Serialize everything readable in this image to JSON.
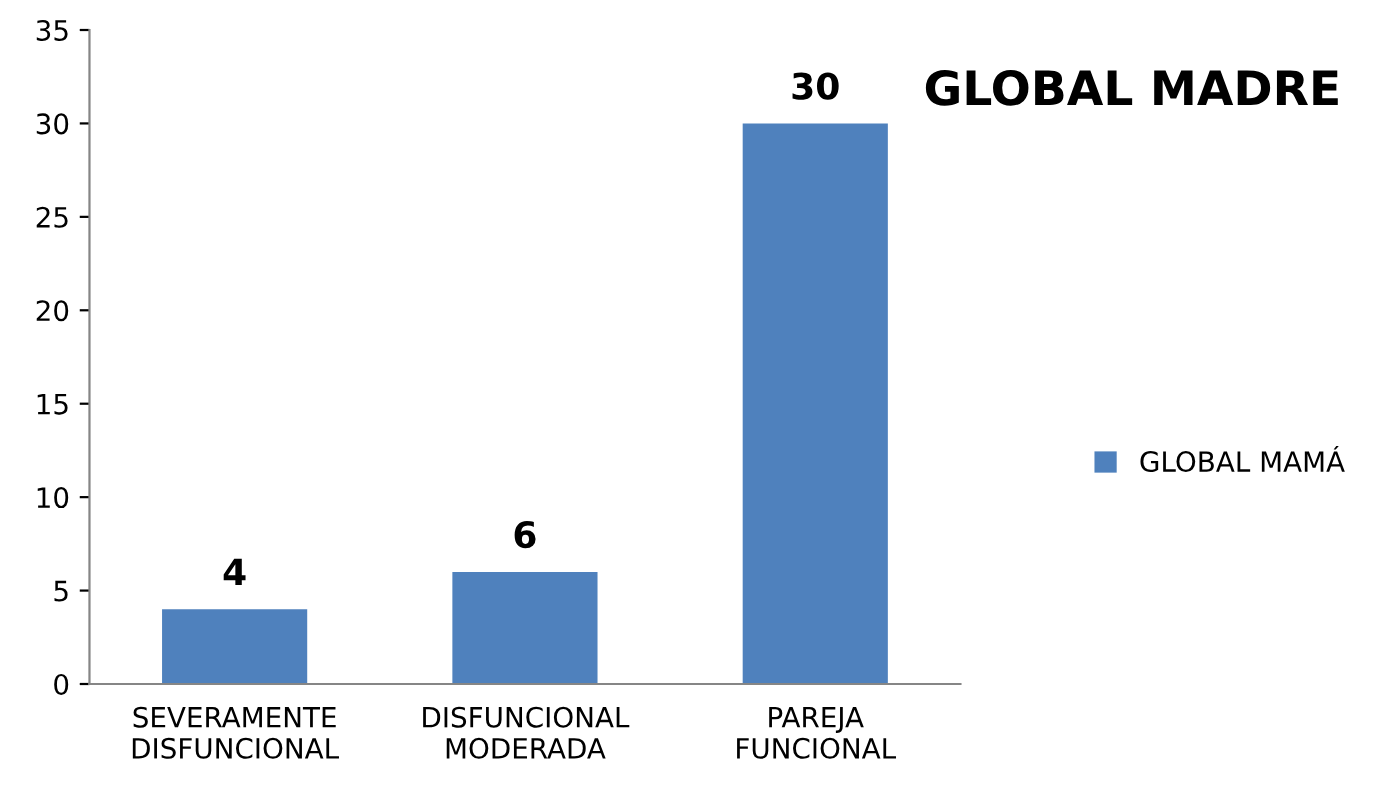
{
  "chart_data": {
    "type": "bar",
    "title": "GLOBAL MADRE",
    "categories": [
      "SEVERAMENTE\nDISFUNCIONAL",
      "DISFUNCIONAL\nMODERADA",
      "PAREJA\nFUNCIONAL"
    ],
    "series": [
      {
        "name": "GLOBAL MAMÁ",
        "color": "#4f81bd",
        "values": [
          4,
          6,
          30
        ]
      }
    ],
    "ylim": [
      0,
      35
    ],
    "yticks": [
      0,
      5,
      10,
      15,
      20,
      25,
      30,
      35
    ],
    "data_labels": true,
    "grid": false,
    "legend": "right"
  }
}
